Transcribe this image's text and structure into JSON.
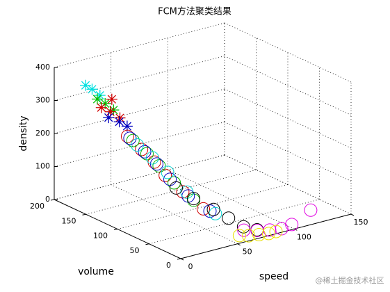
{
  "chart_data": {
    "type": "scatter3d",
    "title": "FCM方法聚类结果",
    "xlabel": "speed",
    "ylabel": "volume",
    "zlabel": "density",
    "watermark": "@稀土掘金技术社区",
    "xlim": [
      0,
      150
    ],
    "xticks": [
      0,
      50,
      100,
      150
    ],
    "ylim": [
      0,
      200
    ],
    "yticks": [
      0,
      50,
      100,
      150,
      200
    ],
    "zlim": [
      0,
      400
    ],
    "zticks": [
      0,
      100,
      200,
      300,
      400
    ],
    "grid": true,
    "series": [
      {
        "color": "#00e0e0",
        "marker": "star",
        "x": [
          22,
          25,
          28
        ],
        "y": [
          190,
          185,
          178
        ],
        "z": [
          335,
          325,
          310
        ]
      },
      {
        "color": "#00c000",
        "marker": "star",
        "x": [
          24,
          27,
          30
        ],
        "y": [
          175,
          168,
          160
        ],
        "z": [
          305,
          295,
          280
        ]
      },
      {
        "color": "#d00000",
        "marker": "star",
        "x": [
          22,
          26,
          30,
          34
        ],
        "y": [
          165,
          158,
          150,
          170
        ],
        "z": [
          290,
          280,
          265,
          300
        ]
      },
      {
        "color": "#0000c0",
        "marker": "star",
        "x": [
          20,
          25,
          28
        ],
        "y": [
          150,
          142,
          135
        ],
        "z": [
          275,
          265,
          255
        ]
      },
      {
        "color": "#d00000",
        "marker": "circle",
        "x": [
          20,
          24,
          28,
          32,
          38,
          45
        ],
        "y": [
          120,
          105,
          92,
          82,
          65,
          45
        ],
        "z": [
          245,
          215,
          185,
          150,
          110,
          70
        ]
      },
      {
        "color": "#00b000",
        "marker": "circle",
        "x": [
          22,
          26,
          30,
          36,
          42
        ],
        "y": [
          115,
          100,
          88,
          75,
          55
        ],
        "z": [
          235,
          205,
          175,
          130,
          90
        ]
      },
      {
        "color": "#0000c0",
        "marker": "circle",
        "x": [
          21,
          25,
          29,
          34,
          40,
          48
        ],
        "y": [
          118,
          102,
          90,
          78,
          60,
          40
        ],
        "z": [
          240,
          210,
          180,
          140,
          100,
          65
        ]
      },
      {
        "color": "#00d0d0",
        "marker": "circle",
        "x": [
          23,
          28,
          33,
          40,
          50
        ],
        "y": [
          110,
          95,
          80,
          62,
          35
        ],
        "z": [
          225,
          195,
          160,
          110,
          60
        ]
      },
      {
        "color": "#000000",
        "marker": "circle",
        "x": [
          35,
          42,
          50,
          56,
          62,
          70
        ],
        "y": [
          70,
          55,
          38,
          25,
          12,
          5
        ],
        "z": [
          120,
          95,
          70,
          50,
          30,
          20
        ]
      },
      {
        "color": "#e000e0",
        "marker": "circle",
        "x": [
          60,
          70,
          80,
          90,
          100,
          120
        ],
        "y": [
          8,
          5,
          3,
          2,
          4,
          10
        ],
        "z": [
          25,
          18,
          12,
          8,
          10,
          30
        ]
      },
      {
        "color": "#e8e000",
        "marker": "circle",
        "x": [
          55,
          62,
          70,
          78,
          85
        ],
        "y": [
          6,
          4,
          2,
          1,
          2
        ],
        "z": [
          15,
          10,
          8,
          5,
          4
        ]
      }
    ]
  }
}
